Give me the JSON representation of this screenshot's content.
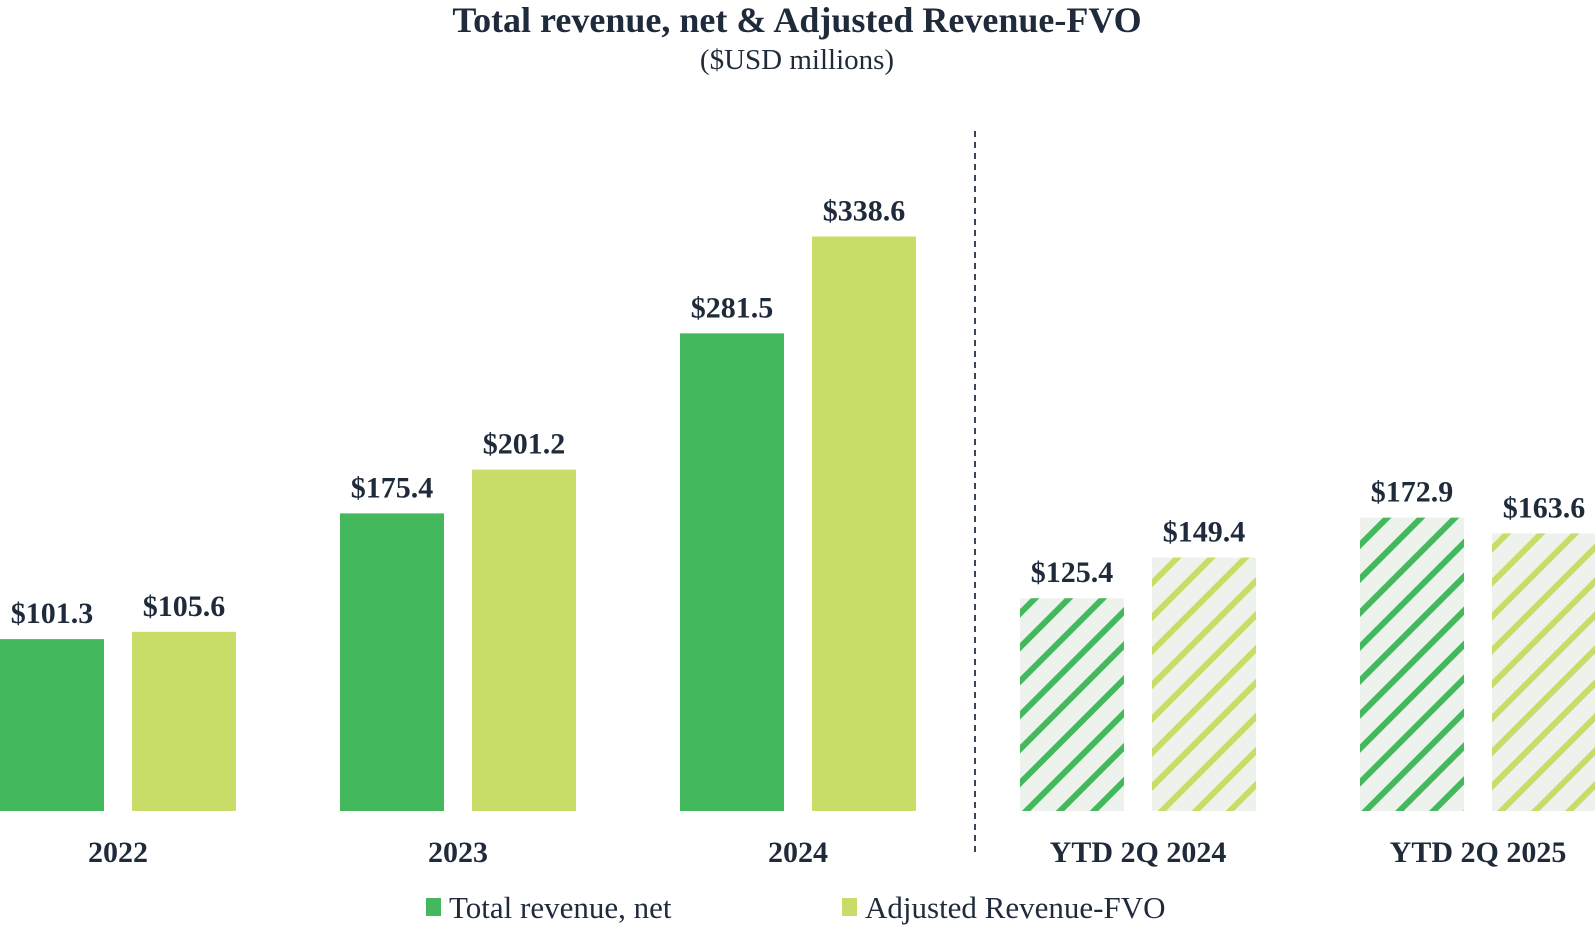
{
  "chart_data": {
    "type": "bar",
    "title": "Total revenue, net & Adjusted Revenue-FVO",
    "subtitle": "($USD millions)",
    "categories": [
      "2022",
      "2023",
      "2024",
      "YTD 2Q 2024",
      "YTD 2Q 2025"
    ],
    "series": [
      {
        "name": "Total revenue, net",
        "color": "#43b85c",
        "values": [
          101.3,
          175.4,
          281.5,
          125.4,
          172.9
        ],
        "labels": [
          "$101.3",
          "$175.4",
          "$281.5",
          "$125.4",
          "$172.9"
        ]
      },
      {
        "name": "Adjusted Revenue-FVO",
        "color": "#c8dd68",
        "values": [
          105.6,
          201.2,
          338.6,
          149.4,
          163.6
        ],
        "labels": [
          "$105.6",
          "$201.2",
          "$338.6",
          "$149.4",
          "$163.6"
        ]
      }
    ],
    "hatched_categories": [
      "YTD 2Q 2024",
      "YTD 2Q 2025"
    ],
    "separator_after": "2024",
    "legend_position": "bottom",
    "grid": false,
    "ylim": [
      0,
      360
    ]
  }
}
